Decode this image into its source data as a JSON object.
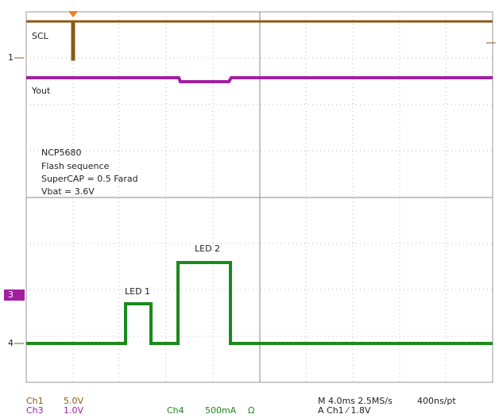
{
  "trace_labels": {
    "scl": "SCL",
    "yout": "Yout",
    "led1": "LED 1",
    "led2": "LED 2"
  },
  "annotation": [
    "NCP5680",
    "Flash sequence",
    "SuperCAP = 0.5 Farad",
    "Vbat = 3.6V"
  ],
  "markers": {
    "ch1": "1",
    "ch3": "3",
    "ch4": "4"
  },
  "status": {
    "ch1_name": "Ch1",
    "ch1_scale": "5.0V",
    "ch3_name": "Ch3",
    "ch3_scale": "1.0V",
    "ch4_name": "Ch4",
    "ch4_scale": "500mA",
    "ch4_unit": "Ω",
    "timebase": "M 4.0ms 2.5MS/s",
    "resolution": "400ns/pt",
    "trigger": "A  Ch1  ⁄  1.8V"
  }
}
